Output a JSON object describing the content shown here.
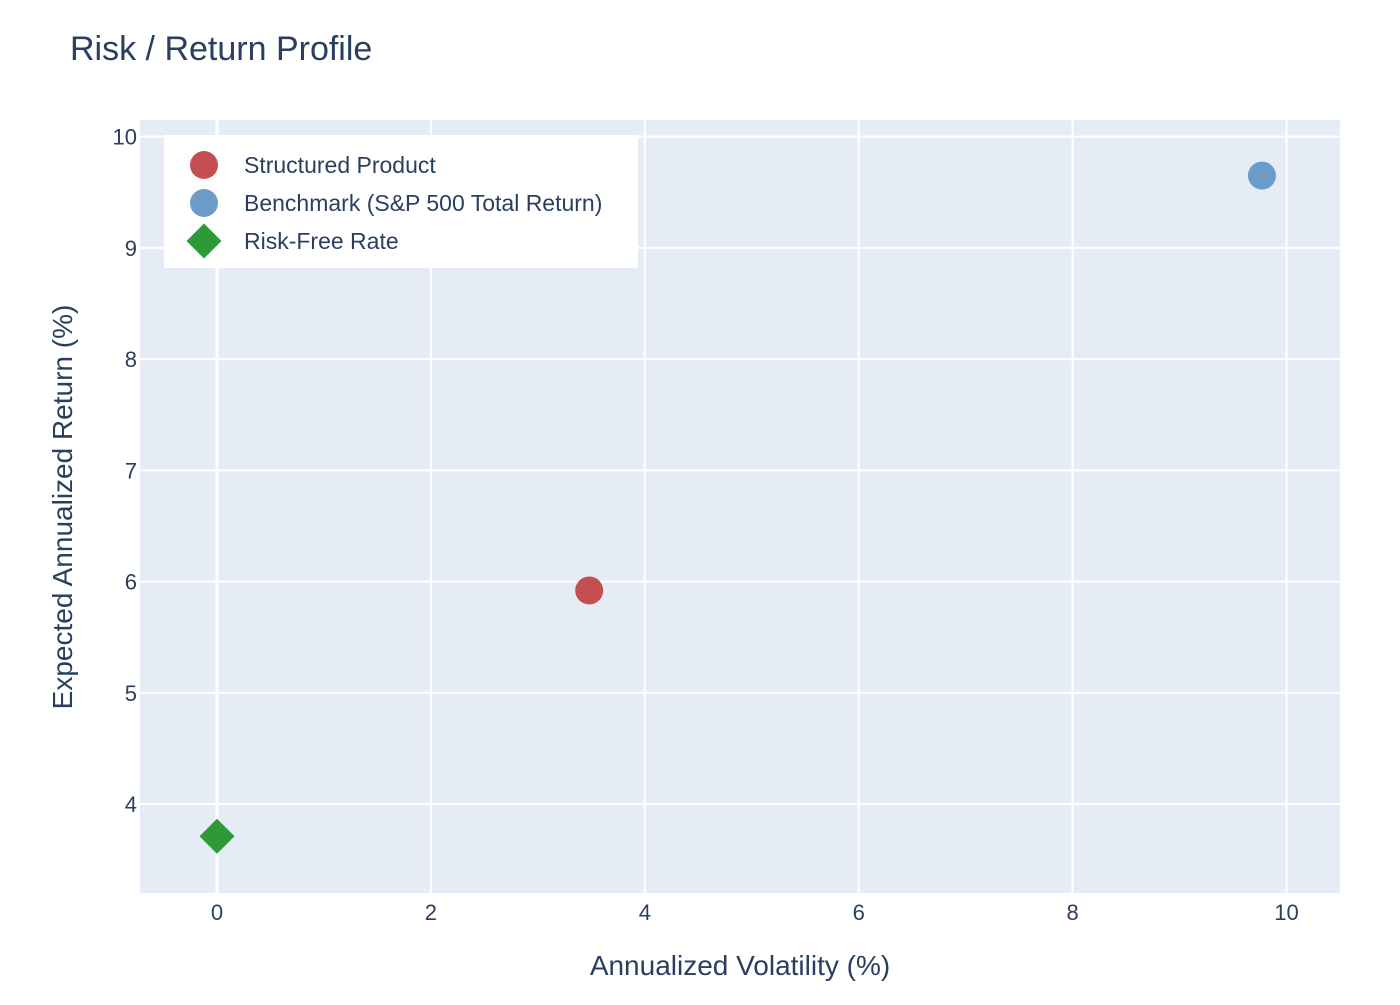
{
  "chart_data": {
    "type": "scatter",
    "title": "Risk / Return Profile",
    "xlabel": "Annualized Volatility (%)",
    "ylabel": "Expected Annualized Return (%)",
    "xlim": [
      -0.72,
      10.5
    ],
    "ylim": [
      3.2,
      10.15
    ],
    "x_ticks": [
      0,
      2,
      4,
      6,
      8,
      10
    ],
    "y_ticks": [
      4,
      5,
      6,
      7,
      8,
      9,
      10
    ],
    "grid": true,
    "legend_position": "top-left",
    "plot_background": "#e5ecf6",
    "series": [
      {
        "name": "Structured Product",
        "marker": "circle",
        "color": "#c44e52",
        "points": [
          {
            "x": 3.48,
            "y": 5.92
          }
        ]
      },
      {
        "name": "Benchmark (S&P 500 Total Return)",
        "marker": "circle",
        "color": "#6a9cc7",
        "points": [
          {
            "x": 9.77,
            "y": 9.65
          }
        ]
      },
      {
        "name": "Risk-Free Rate",
        "marker": "diamond",
        "color": "#2e9a35",
        "points": [
          {
            "x": 0.0,
            "y": 3.71
          }
        ]
      }
    ]
  }
}
